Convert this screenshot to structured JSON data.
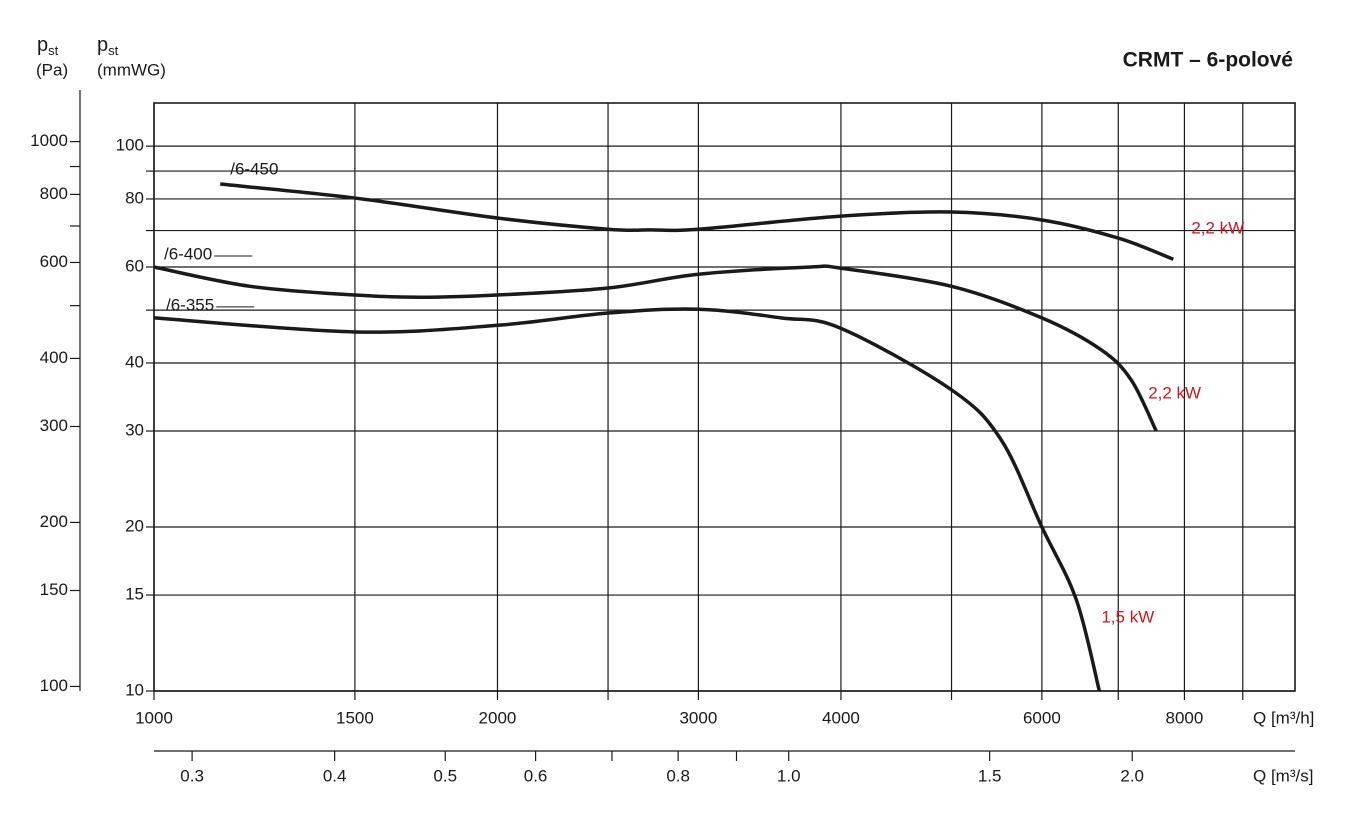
{
  "chart_data": {
    "type": "line",
    "title": "CRMT – 6-polové",
    "y_label": {
      "symbol": "p",
      "subscript": "st",
      "unit": "(mmWG)"
    },
    "y2_label": {
      "symbol": "p",
      "subscript": "st",
      "unit": "(Pa)"
    },
    "x_label": "Q [m³/h]",
    "x2_label": "Q [m³/s]",
    "log_x": true,
    "log_y": true,
    "grid": true,
    "xlim": [
      1000,
      10000
    ],
    "xticks": [
      1000,
      1500,
      2000,
      3000,
      4000,
      6000,
      8000
    ],
    "xminor": [
      2500,
      5000,
      7000,
      9000
    ],
    "ylim": [
      10,
      120
    ],
    "yticks": [
      10,
      15,
      20,
      30,
      40,
      60,
      80,
      100
    ],
    "yminor": [
      50,
      70,
      90
    ],
    "y2lim": [
      98.1,
      1177.2
    ],
    "y2ticks": [
      100,
      150,
      200,
      300,
      400,
      600,
      800,
      1000
    ],
    "y2minor": [
      500,
      700,
      900
    ],
    "x2lim": [
      0.2778,
      2.7778
    ],
    "x2ticks": [
      0.3,
      0.4,
      0.5,
      0.6,
      0.8,
      {
        "value": 1,
        "label": "1.0"
      },
      1.5,
      {
        "value": 2,
        "label": "2.0"
      }
    ],
    "x2minor": [
      0.7,
      0.9
    ],
    "series": [
      {
        "name": "/6-450",
        "power": "2,2 kW",
        "color": "#1a1a1a",
        "x": [
          1143,
          1500,
          2000,
          2500,
          2724,
          3000,
          4000,
          5000,
          6000,
          7000,
          7823
        ],
        "values": [
          85.2,
          80.3,
          73.8,
          70.4,
          70.2,
          70.4,
          74.4,
          75.7,
          73.2,
          67.8,
          62.0
        ]
      },
      {
        "name": "/6-400",
        "power": "2,2 kW",
        "color": "#1a1a1a",
        "x": [
          1000,
          1214,
          1500,
          1712,
          2000,
          2500,
          3000,
          3764,
          4000,
          5000,
          6000,
          6761,
          7187,
          7557
        ],
        "values": [
          60,
          55.3,
          53.3,
          52.8,
          53.3,
          54.9,
          58.2,
          60,
          59.7,
          55.3,
          48.4,
          42.3,
          37.2,
          30
        ]
      },
      {
        "name": "/6-355",
        "power": "1,5 kW",
        "color": "#1a1a1a",
        "x": [
          1000,
          1500,
          2000,
          2500,
          3000,
          3543,
          4000,
          5000,
          5527,
          6000,
          6432,
          6738
        ],
        "values": [
          48.4,
          45.6,
          46.9,
          49.4,
          50.2,
          48.4,
          46.3,
          35.7,
          28.9,
          20,
          14.7,
          10
        ]
      }
    ],
    "power_color": "#c8191e"
  }
}
